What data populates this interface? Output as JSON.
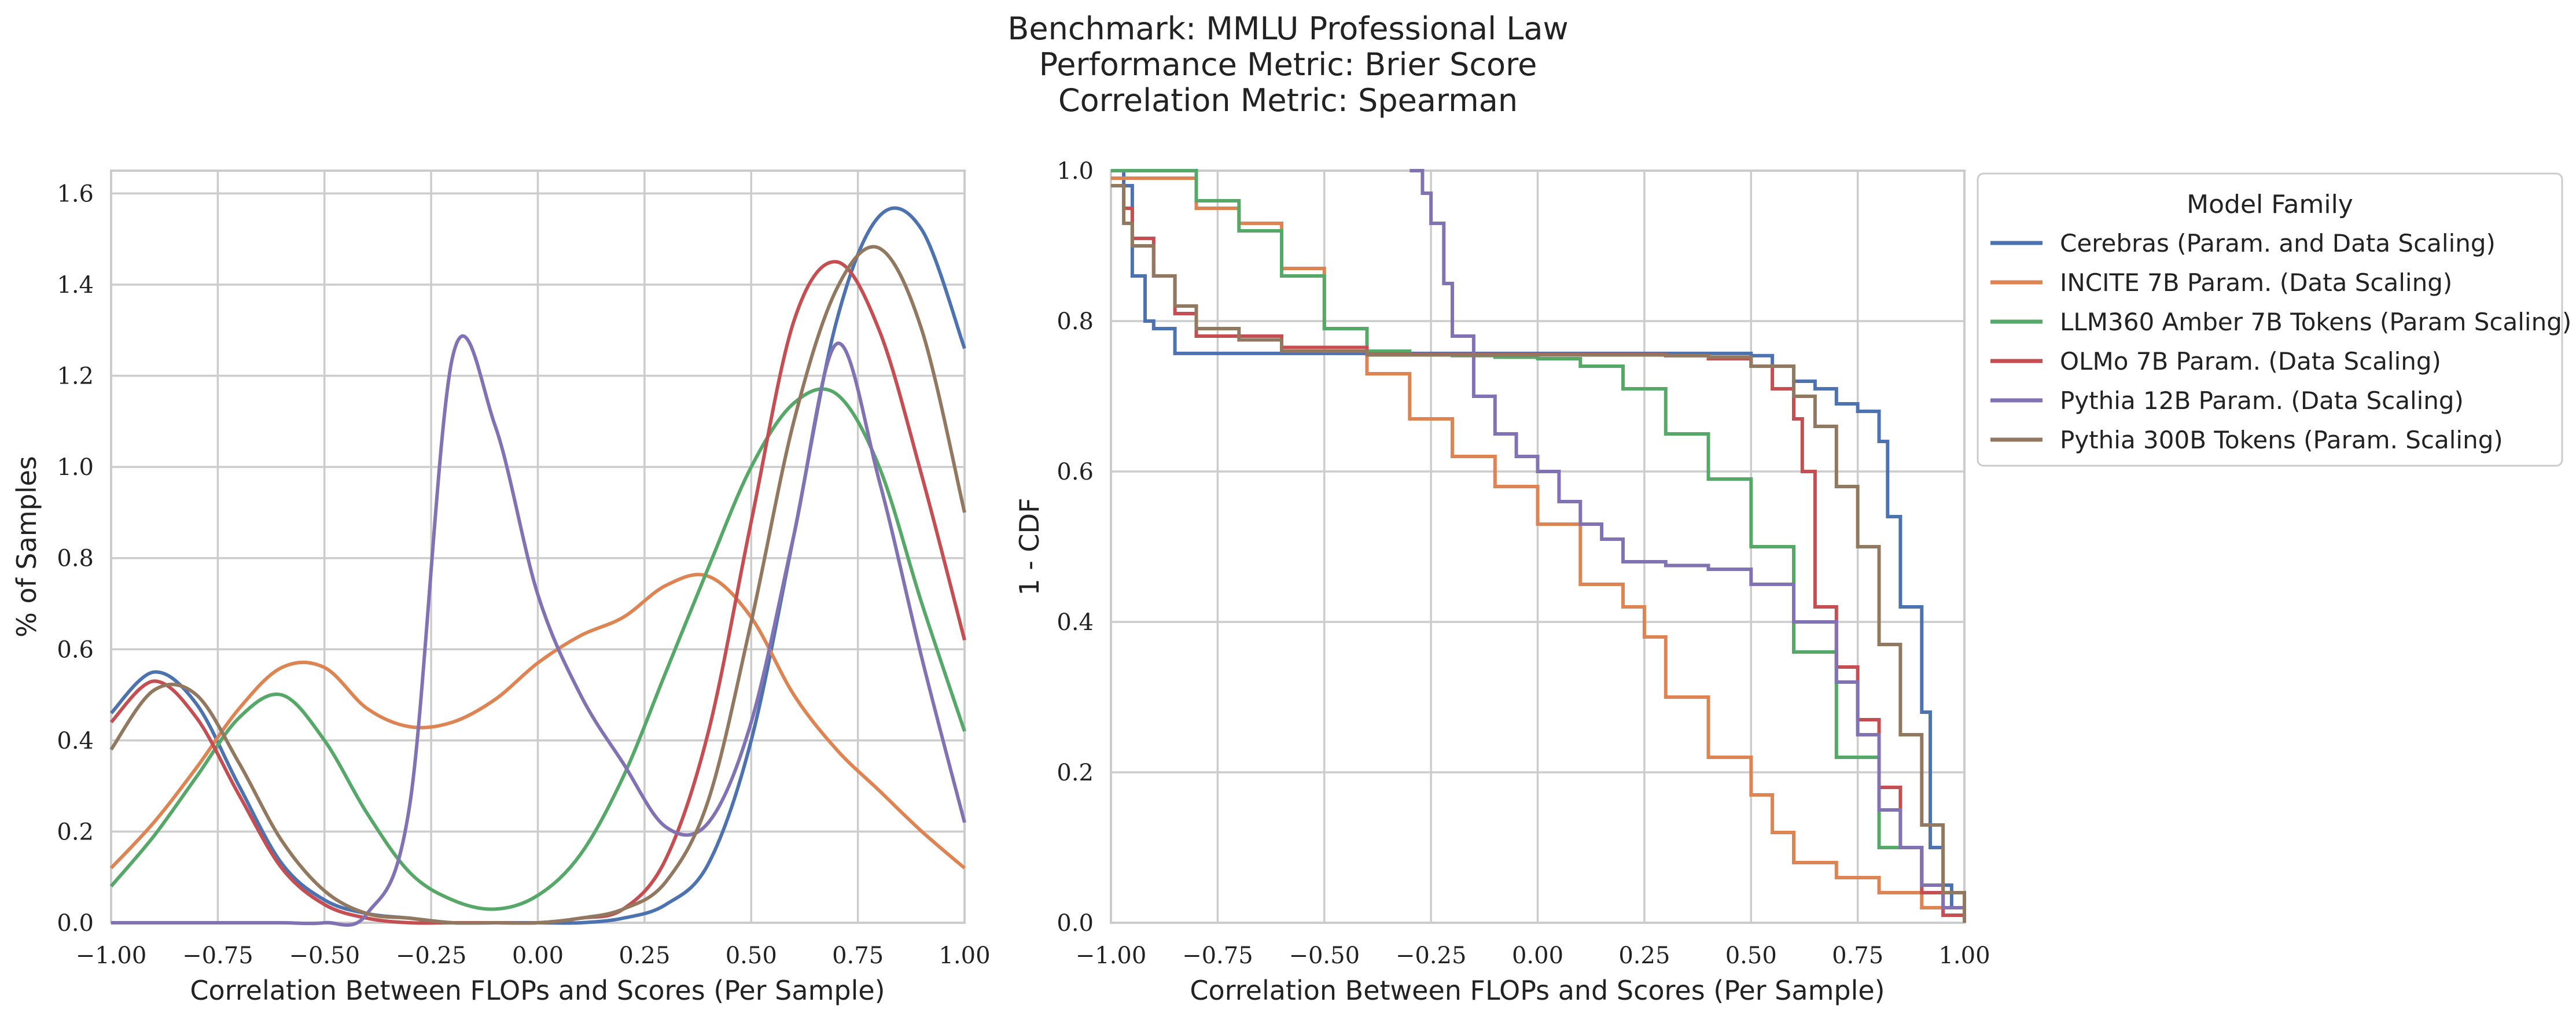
{
  "title_lines": [
    "Benchmark: MMLU Professional Law",
    "Performance Metric: Brier Score",
    "Correlation Metric: Spearman"
  ],
  "legend": {
    "title": "Model Family",
    "placement": "outside-right",
    "entries": [
      {
        "label": "Cerebras (Param. and Data Scaling)",
        "color": "#4c72b0"
      },
      {
        "label": "INCITE 7B Param. (Data Scaling)",
        "color": "#dd8452"
      },
      {
        "label": "LLM360 Amber 7B Tokens (Param Scaling)",
        "color": "#55a868"
      },
      {
        "label": "OLMo 7B Param. (Data Scaling)",
        "color": "#c44e52"
      },
      {
        "label": "Pythia 12B Param. (Data Scaling)",
        "color": "#8172b3"
      },
      {
        "label": "Pythia 300B Tokens (Param. Scaling)",
        "color": "#937860"
      }
    ]
  },
  "chart_data": [
    {
      "type": "line",
      "subtype": "kde",
      "xlabel": "Correlation Between FLOPs and Scores (Per Sample)",
      "ylabel": "% of Samples",
      "xlim": [
        -1.0,
        1.0
      ],
      "ylim": [
        0.0,
        1.65
      ],
      "xticks": [
        "−1.00",
        "−0.75",
        "−0.50",
        "−0.25",
        "0.00",
        "0.25",
        "0.50",
        "0.75",
        "1.00"
      ],
      "yticks": [
        "0.0",
        "0.2",
        "0.4",
        "0.6",
        "0.8",
        "1.0",
        "1.2",
        "1.4",
        "1.6"
      ],
      "grid": true,
      "x": [
        -1.0,
        -0.9,
        -0.8,
        -0.7,
        -0.6,
        -0.5,
        -0.4,
        -0.3,
        -0.2,
        -0.1,
        0.0,
        0.1,
        0.2,
        0.3,
        0.4,
        0.5,
        0.6,
        0.7,
        0.8,
        0.9,
        1.0
      ],
      "series": [
        {
          "name": "Cerebras (Param. and Data Scaling)",
          "color": "#4c72b0",
          "values": [
            0.46,
            0.55,
            0.48,
            0.3,
            0.13,
            0.05,
            0.02,
            0.01,
            0.0,
            0.0,
            0.0,
            0.0,
            0.01,
            0.04,
            0.13,
            0.4,
            0.85,
            1.32,
            1.55,
            1.52,
            1.26
          ]
        },
        {
          "name": "INCITE 7B Param. (Data Scaling)",
          "color": "#dd8452",
          "values": [
            0.12,
            0.22,
            0.34,
            0.47,
            0.56,
            0.56,
            0.47,
            0.43,
            0.44,
            0.49,
            0.57,
            0.63,
            0.67,
            0.74,
            0.76,
            0.67,
            0.5,
            0.38,
            0.29,
            0.2,
            0.12
          ]
        },
        {
          "name": "LLM360 Amber 7B Tokens (Param Scaling)",
          "color": "#55a868",
          "values": [
            0.08,
            0.19,
            0.32,
            0.45,
            0.5,
            0.4,
            0.24,
            0.11,
            0.05,
            0.03,
            0.06,
            0.15,
            0.32,
            0.55,
            0.78,
            1.0,
            1.14,
            1.16,
            1.0,
            0.7,
            0.42
          ]
        },
        {
          "name": "OLMo 7B Param. (Data Scaling)",
          "color": "#c44e52",
          "values": [
            0.44,
            0.53,
            0.45,
            0.28,
            0.12,
            0.04,
            0.01,
            0.0,
            0.0,
            0.0,
            0.0,
            0.01,
            0.03,
            0.14,
            0.42,
            0.88,
            1.32,
            1.45,
            1.3,
            0.98,
            0.62
          ]
        },
        {
          "name": "Pythia 12B Param. (Data Scaling)",
          "color": "#8172b3",
          "values": [
            0.0,
            0.0,
            0.0,
            0.0,
            0.0,
            0.0,
            0.02,
            0.26,
            1.24,
            1.09,
            0.72,
            0.5,
            0.35,
            0.21,
            0.22,
            0.44,
            0.85,
            1.27,
            0.97,
            0.58,
            0.22
          ]
        },
        {
          "name": "Pythia 300B Tokens (Param. Scaling)",
          "color": "#937860",
          "values": [
            0.38,
            0.51,
            0.5,
            0.35,
            0.18,
            0.07,
            0.02,
            0.01,
            0.0,
            0.0,
            0.0,
            0.01,
            0.03,
            0.09,
            0.27,
            0.66,
            1.1,
            1.39,
            1.48,
            1.3,
            0.9
          ]
        }
      ]
    },
    {
      "type": "line",
      "subtype": "step",
      "xlabel": "Correlation Between FLOPs and Scores (Per Sample)",
      "ylabel": "1 - CDF",
      "xlim": [
        -1.0,
        1.0
      ],
      "ylim": [
        0.0,
        1.0
      ],
      "xticks": [
        "−1.00",
        "−0.75",
        "−0.50",
        "−0.25",
        "0.00",
        "0.25",
        "0.50",
        "0.75",
        "1.00"
      ],
      "yticks": [
        "0.0",
        "0.2",
        "0.4",
        "0.6",
        "0.8",
        "1.0"
      ],
      "grid": true,
      "series": [
        {
          "name": "Cerebras (Param. and Data Scaling)",
          "color": "#4c72b0",
          "x": [
            -1.0,
            -0.97,
            -0.95,
            -0.92,
            -0.9,
            -0.85,
            0.5,
            0.55,
            0.6,
            0.65,
            0.7,
            0.75,
            0.8,
            0.82,
            0.85,
            0.9,
            0.92,
            0.95,
            0.97,
            1.0
          ],
          "y": [
            1.0,
            0.98,
            0.86,
            0.8,
            0.79,
            0.757,
            0.754,
            0.74,
            0.72,
            0.71,
            0.69,
            0.68,
            0.64,
            0.54,
            0.42,
            0.28,
            0.1,
            0.05,
            0.02,
            0.0
          ]
        },
        {
          "name": "INCITE 7B Param. (Data Scaling)",
          "color": "#dd8452",
          "x": [
            -1.0,
            -0.9,
            -0.8,
            -0.7,
            -0.6,
            -0.5,
            -0.4,
            -0.3,
            -0.2,
            -0.1,
            0.0,
            0.1,
            0.2,
            0.25,
            0.3,
            0.4,
            0.5,
            0.55,
            0.6,
            0.7,
            0.8,
            0.9,
            0.95,
            1.0
          ],
          "y": [
            0.99,
            0.99,
            0.95,
            0.93,
            0.87,
            0.79,
            0.73,
            0.67,
            0.62,
            0.58,
            0.53,
            0.45,
            0.42,
            0.38,
            0.3,
            0.22,
            0.17,
            0.12,
            0.08,
            0.06,
            0.04,
            0.02,
            0.01,
            0.0
          ]
        },
        {
          "name": "LLM360 Amber 7B Tokens (Param Scaling)",
          "color": "#55a868",
          "x": [
            -1.0,
            -0.9,
            -0.8,
            -0.7,
            -0.6,
            -0.5,
            -0.4,
            -0.3,
            -0.2,
            -0.1,
            0.0,
            0.1,
            0.2,
            0.3,
            0.4,
            0.5,
            0.6,
            0.7,
            0.8,
            0.9,
            0.95,
            1.0
          ],
          "y": [
            1.0,
            1.0,
            0.96,
            0.92,
            0.86,
            0.79,
            0.76,
            0.756,
            0.754,
            0.752,
            0.75,
            0.74,
            0.71,
            0.65,
            0.59,
            0.5,
            0.36,
            0.22,
            0.1,
            0.04,
            0.02,
            0.0
          ]
        },
        {
          "name": "OLMo 7B Param. (Data Scaling)",
          "color": "#c44e52",
          "x": [
            -1.0,
            -0.97,
            -0.95,
            -0.9,
            -0.85,
            -0.8,
            -0.6,
            -0.4,
            0.3,
            0.4,
            0.5,
            0.55,
            0.6,
            0.62,
            0.65,
            0.7,
            0.75,
            0.8,
            0.85,
            0.9,
            0.95,
            1.0
          ],
          "y": [
            0.98,
            0.95,
            0.91,
            0.86,
            0.81,
            0.78,
            0.765,
            0.756,
            0.754,
            0.75,
            0.74,
            0.71,
            0.67,
            0.6,
            0.42,
            0.34,
            0.27,
            0.18,
            0.1,
            0.04,
            0.01,
            0.0
          ]
        },
        {
          "name": "Pythia 12B Param. (Data Scaling)",
          "color": "#8172b3",
          "x": [
            -0.3,
            -0.27,
            -0.25,
            -0.22,
            -0.2,
            -0.15,
            -0.1,
            -0.05,
            0.0,
            0.05,
            0.1,
            0.15,
            0.2,
            0.3,
            0.4,
            0.5,
            0.6,
            0.7,
            0.75,
            0.8,
            0.85,
            0.9,
            0.95,
            1.0
          ],
          "y": [
            1.0,
            0.97,
            0.93,
            0.85,
            0.78,
            0.7,
            0.65,
            0.62,
            0.6,
            0.56,
            0.53,
            0.51,
            0.48,
            0.475,
            0.47,
            0.45,
            0.4,
            0.32,
            0.25,
            0.15,
            0.1,
            0.05,
            0.02,
            0.0
          ]
        },
        {
          "name": "Pythia 300B Tokens (Param. Scaling)",
          "color": "#937860",
          "x": [
            -1.0,
            -0.97,
            -0.95,
            -0.9,
            -0.85,
            -0.8,
            -0.7,
            -0.6,
            -0.4,
            0.3,
            0.4,
            0.5,
            0.6,
            0.65,
            0.7,
            0.75,
            0.8,
            0.85,
            0.9,
            0.95,
            1.0
          ],
          "y": [
            0.98,
            0.93,
            0.9,
            0.86,
            0.82,
            0.79,
            0.775,
            0.76,
            0.755,
            0.754,
            0.752,
            0.74,
            0.7,
            0.66,
            0.58,
            0.5,
            0.37,
            0.25,
            0.13,
            0.04,
            0.0
          ]
        }
      ]
    }
  ]
}
